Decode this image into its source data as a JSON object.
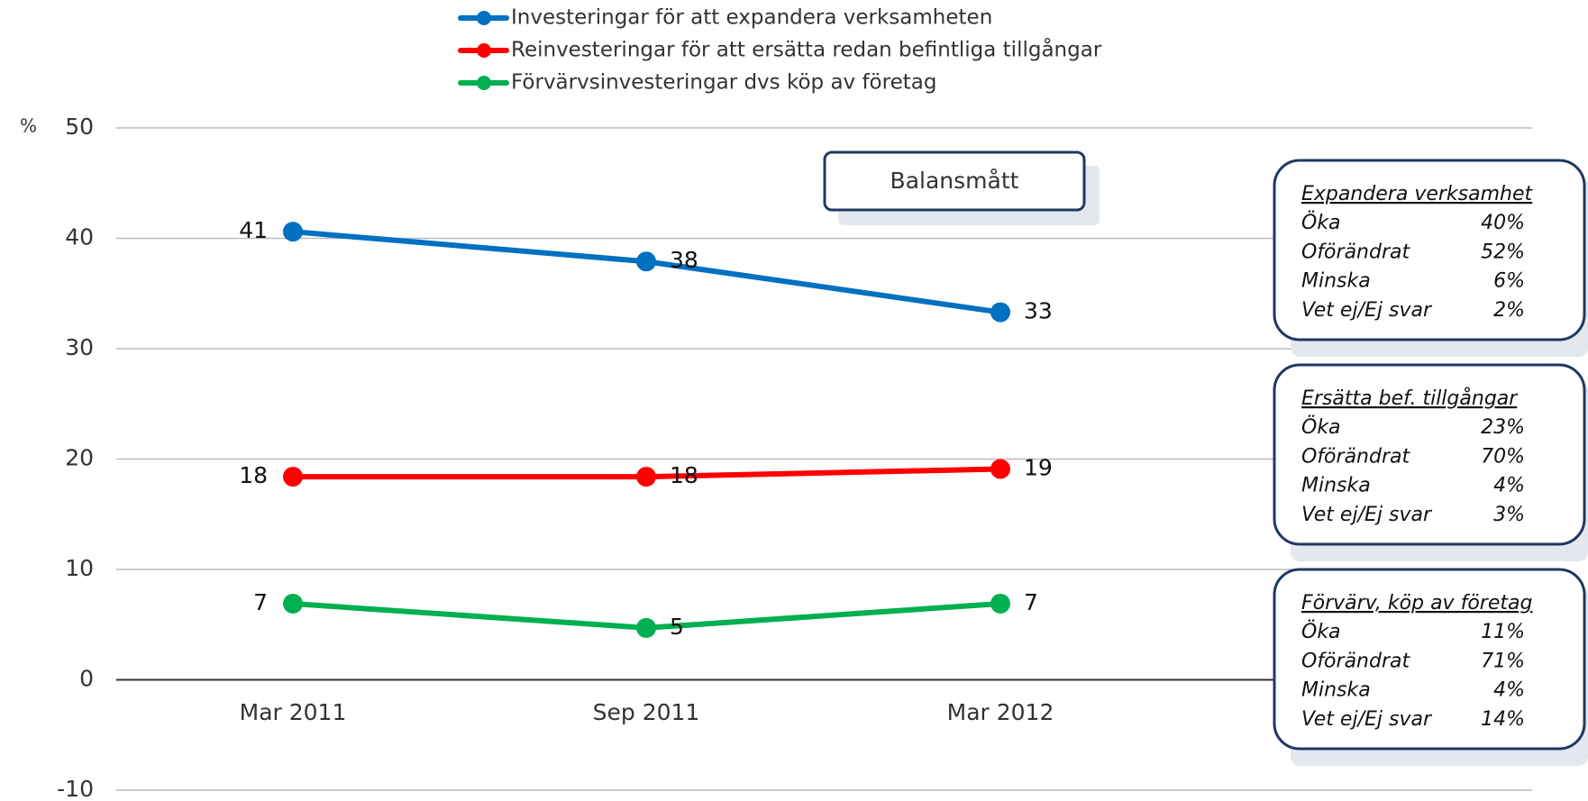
{
  "chart_data": {
    "type": "line",
    "y_unit": "%",
    "categories": [
      "Mar 2011",
      "Sep 2011",
      "Mar 2012"
    ],
    "series": [
      {
        "name": "Investeringar för att expandera verksamheten",
        "color": "#0070c0",
        "values": [
          40.6,
          37.9,
          33.3
        ],
        "value_labels": [
          "41",
          "38",
          "33"
        ]
      },
      {
        "name": "Reinvesteringar för att ersätta redan befintliga tillgångar",
        "color": "#ff0000",
        "values": [
          18.4,
          18.4,
          19.1
        ],
        "value_labels": [
          "18",
          "18",
          "19"
        ]
      },
      {
        "name": "Förvärvsinvesteringar dvs köp av företag",
        "color": "#00b050",
        "values": [
          6.9,
          4.7,
          6.9
        ],
        "value_labels": [
          "7",
          "5",
          "7"
        ]
      }
    ],
    "ylim": [
      -10,
      50
    ],
    "yticks": [
      -10,
      0,
      10,
      20,
      30,
      40,
      50
    ],
    "grid": true,
    "annotation": "Balansmått",
    "panels": [
      {
        "title": "Expandera verksamhet",
        "rows": [
          {
            "label": "Öka",
            "value": "40%"
          },
          {
            "label": "Oförändrat",
            "value": "52%"
          },
          {
            "label": "Minska",
            "value": "6%"
          },
          {
            "label": "Vet ej/Ej svar",
            "value": "2%"
          }
        ]
      },
      {
        "title": "Ersätta bef. tillgångar",
        "rows": [
          {
            "label": "Öka",
            "value": "23%"
          },
          {
            "label": "Oförändrat",
            "value": "70%"
          },
          {
            "label": "Minska",
            "value": "4%"
          },
          {
            "label": "Vet ej/Ej svar",
            "value": "3%"
          }
        ]
      },
      {
        "title": "Förvärv, köp av företag",
        "rows": [
          {
            "label": "Öka",
            "value": "11%"
          },
          {
            "label": "Oförändrat",
            "value": "71%"
          },
          {
            "label": "Minska",
            "value": "4%"
          },
          {
            "label": "Vet ej/Ej svar",
            "value": "14%"
          }
        ]
      }
    ]
  }
}
